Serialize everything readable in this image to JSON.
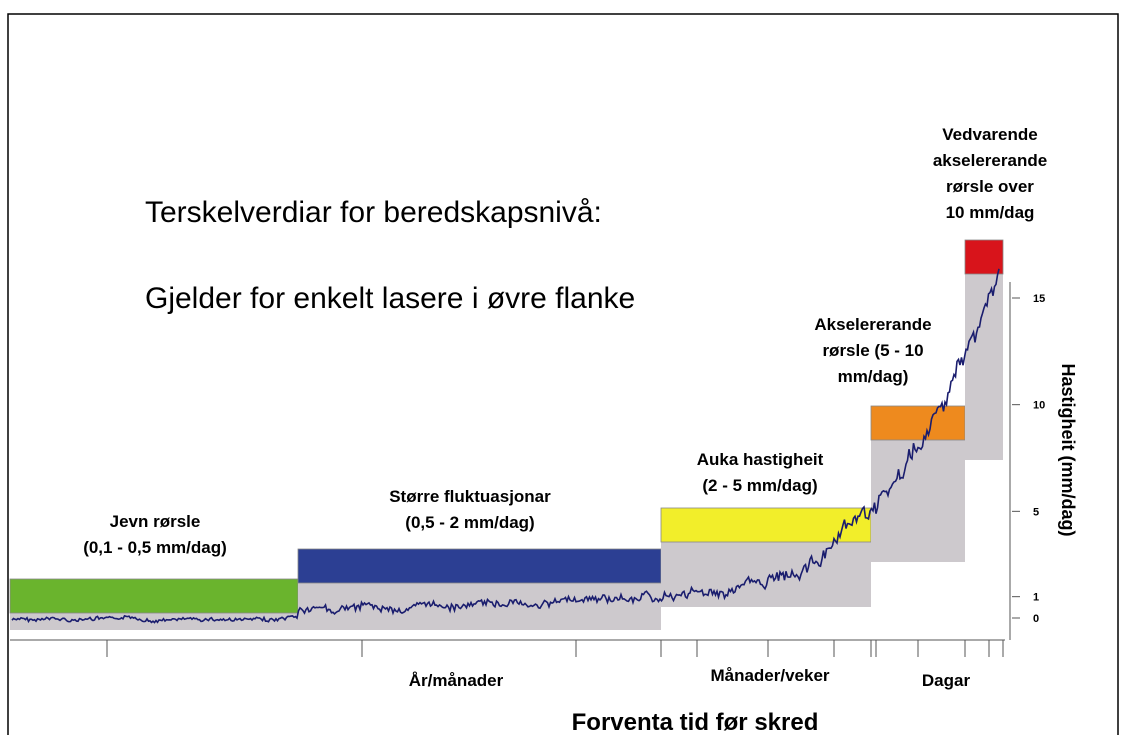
{
  "title": "Terskelverdiar for beredskapsnivå:",
  "subtitle": "Gjelder for enkelt lasere i øvre flanke",
  "levels": [
    {
      "lines": [
        "Jevn rørsle",
        "(0,1 - 0,5 mm/dag)"
      ],
      "color": "#6ab42d"
    },
    {
      "lines": [
        "Større fluktuasjonar",
        "(0,5 - 2 mm/dag)"
      ],
      "color": "#2c3f93"
    },
    {
      "lines": [
        "Auka hastigheit",
        "(2 - 5 mm/dag)"
      ],
      "color": "#f2ee2a"
    },
    {
      "lines": [
        "Akselererande",
        "rørsle (5 - 10",
        "mm/dag)"
      ],
      "color": "#ee8a1e"
    },
    {
      "lines": [
        "Vedvarende",
        "akselererande",
        "rørsle over",
        "10 mm/dag"
      ],
      "color": "#d8141b"
    }
  ],
  "y_axis": {
    "label": "Hastigheit (mm/dag)",
    "ticks": [
      0,
      1,
      5,
      10,
      15
    ],
    "lim": [
      0,
      15
    ]
  },
  "x_axis": {
    "label": "Forventa tid før skred",
    "segments": [
      "År/månader",
      "Månader/veker",
      "Dagar"
    ]
  }
}
